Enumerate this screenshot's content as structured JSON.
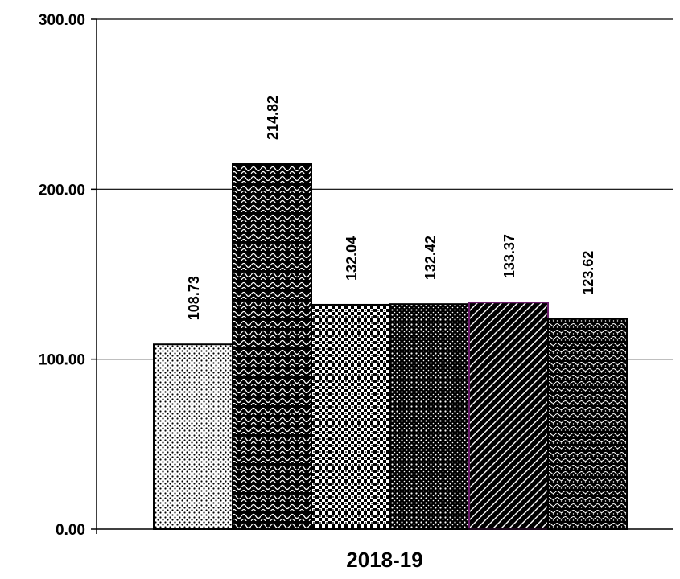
{
  "chart_data": {
    "type": "bar",
    "categories": [
      "2018-19"
    ],
    "series": [
      {
        "values": [
          108.73
        ]
      },
      {
        "values": [
          214.82
        ]
      },
      {
        "values": [
          132.04
        ]
      },
      {
        "values": [
          132.42
        ]
      },
      {
        "values": [
          133.37
        ]
      },
      {
        "values": [
          123.62
        ]
      }
    ],
    "ylim": [
      0,
      300
    ],
    "yticks": [
      "0.00",
      "100.00",
      "200.00",
      "300.00"
    ],
    "data_labels": [
      "108.73",
      "214.82",
      "132.04",
      "132.42",
      "133.37",
      "123.62"
    ],
    "grid": true,
    "legend": "none",
    "colors": {
      "gridline": "#000000",
      "bar_outline": "#000000",
      "highlight_outline": "#6a1b6a"
    }
  }
}
